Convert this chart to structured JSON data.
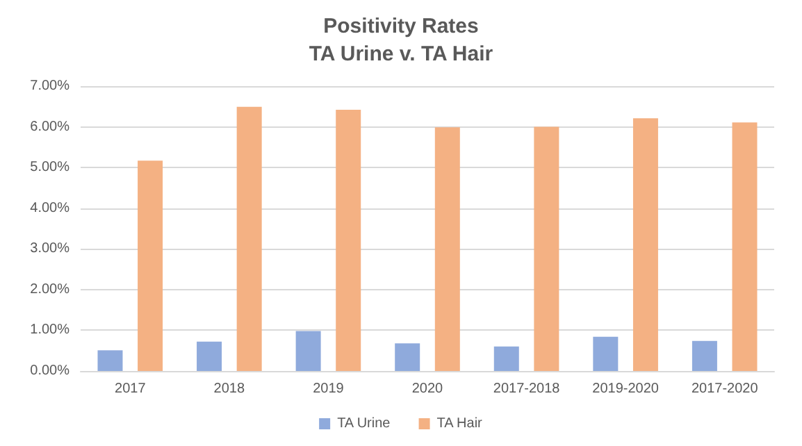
{
  "chart_data": {
    "type": "bar",
    "title": "Positivity Rates\nTA Urine v. TA Hair",
    "categories": [
      "2017",
      "2018",
      "2019",
      "2020",
      "2017-2018",
      "2019-2020",
      "2017-2020"
    ],
    "series": [
      {
        "name": "TA Urine",
        "color": "#8faadc",
        "values": [
          0.51,
          0.72,
          0.98,
          0.68,
          0.6,
          0.84,
          0.74
        ]
      },
      {
        "name": "TA Hair",
        "color": "#f4b183",
        "values": [
          5.17,
          6.49,
          6.42,
          5.99,
          6.0,
          6.21,
          6.11
        ]
      }
    ],
    "ylim": [
      0,
      7
    ],
    "yticks": [
      {
        "value": 0,
        "label": "0.00%"
      },
      {
        "value": 1,
        "label": "1.00%"
      },
      {
        "value": 2,
        "label": "2.00%"
      },
      {
        "value": 3,
        "label": "3.00%"
      },
      {
        "value": 4,
        "label": "4.00%"
      },
      {
        "value": 5,
        "label": "5.00%"
      },
      {
        "value": 6,
        "label": "6.00%"
      },
      {
        "value": 7,
        "label": "7.00%"
      }
    ],
    "grid": "y",
    "legend": "bottom"
  }
}
